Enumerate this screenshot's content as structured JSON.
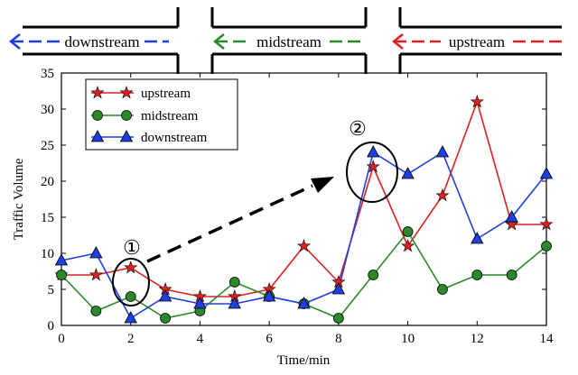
{
  "road": {
    "segments": [
      {
        "label": "downstream",
        "color": "#1f3fe0"
      },
      {
        "label": "midstream",
        "color": "#2a8a2a"
      },
      {
        "label": "upstream",
        "color": "#e02020"
      }
    ]
  },
  "annotations": {
    "marker_1": "①",
    "marker_2": "②"
  },
  "chart_data": {
    "type": "line",
    "title": "",
    "xlabel": "Time/min",
    "ylabel": "Traffic Volume",
    "x": [
      0,
      1,
      2,
      3,
      4,
      5,
      6,
      7,
      8,
      9,
      10,
      11,
      12,
      13,
      14
    ],
    "xlim": [
      0,
      14
    ],
    "ylim": [
      0,
      35
    ],
    "xticks": [
      0,
      2,
      4,
      6,
      8,
      10,
      12,
      14
    ],
    "yticks": [
      0,
      5,
      10,
      15,
      20,
      25,
      30,
      35
    ],
    "grid": false,
    "legend_position": "top-left",
    "series": [
      {
        "name": "upstream",
        "marker": "star",
        "color": "#e02020",
        "values": [
          7,
          7,
          8,
          5,
          4,
          4,
          5,
          11,
          6,
          22,
          11,
          18,
          31,
          14,
          14
        ]
      },
      {
        "name": "midstream",
        "marker": "circle",
        "color": "#2a8a2a",
        "values": [
          7,
          2,
          4,
          1,
          2,
          6,
          4,
          3,
          1,
          7,
          13,
          5,
          7,
          7,
          11
        ]
      },
      {
        "name": "downstream",
        "marker": "triangle",
        "color": "#1f3fe0",
        "values": [
          9,
          10,
          1,
          4,
          3,
          3,
          4,
          3,
          5,
          24,
          21,
          24,
          12,
          15,
          21
        ]
      }
    ]
  }
}
